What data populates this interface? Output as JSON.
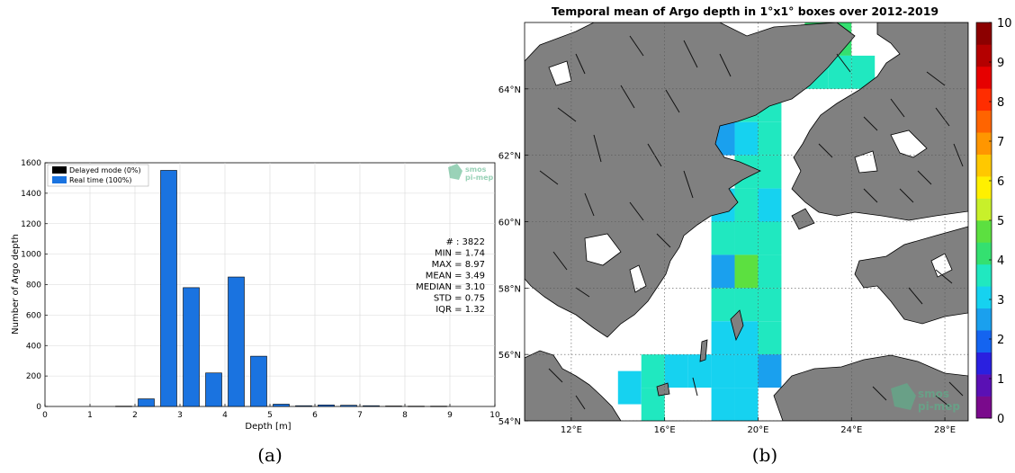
{
  "chart_data": [
    {
      "type": "bar",
      "panel_label": "(a)",
      "xlabel": "Depth [m]",
      "ylabel": "Number of Argo depth",
      "xlim": [
        0,
        10
      ],
      "ylim": [
        0,
        1600
      ],
      "xticks": [
        "0",
        "1",
        "2",
        "3",
        "4",
        "5",
        "6",
        "7",
        "8",
        "9",
        "10"
      ],
      "yticks": [
        "0",
        "200",
        "400",
        "600",
        "800",
        "1000",
        "1200",
        "1400",
        "1600"
      ],
      "grid": true,
      "legend_position": "top-left",
      "series": [
        {
          "name": "Delayed mode (0%)",
          "color": "#000000",
          "values": []
        },
        {
          "name": "Real time (100%)",
          "color": "#1a73e0",
          "x": [
            1.75,
            2.25,
            2.75,
            3.25,
            3.75,
            4.25,
            4.75,
            5.25,
            5.75,
            6.25,
            6.75,
            7.25,
            7.75,
            8.25,
            8.75
          ],
          "values": [
            2,
            50,
            1550,
            780,
            220,
            850,
            330,
            15,
            5,
            10,
            8,
            5,
            3,
            2,
            2
          ]
        }
      ],
      "stats": [
        "# : 3822",
        "MIN = 1.74",
        "MAX = 8.97",
        "MEAN = 3.49",
        "MEDIAN = 3.10",
        "STD = 0.75",
        "IQR = 1.32"
      ],
      "watermark": [
        "smos",
        "pi-mep"
      ]
    },
    {
      "type": "heatmap",
      "panel_label": "(b)",
      "title": "Temporal mean of Argo depth in 1°x1° boxes over 2012-2019",
      "xlim": [
        10,
        29
      ],
      "ylim": [
        54,
        66
      ],
      "xticks": [
        "12°E",
        "16°E",
        "20°E",
        "24°E",
        "28°E"
      ],
      "yticks": [
        "54°N",
        "56°N",
        "58°N",
        "60°N",
        "62°N",
        "64°N"
      ],
      "colorbar": {
        "min": 0,
        "max": 10,
        "ticks": [
          "0",
          "1",
          "2",
          "3",
          "4",
          "5",
          "6",
          "7",
          "8",
          "9",
          "10"
        ],
        "colors": [
          "#7a0a8c",
          "#5a10b4",
          "#2a20e0",
          "#1464f0",
          "#1aa0ee",
          "#16d2f0",
          "#20e8c0",
          "#34e070",
          "#5ce040",
          "#c8f02a",
          "#fff000",
          "#ffc800",
          "#ff9600",
          "#ff6400",
          "#ff2d00",
          "#e60000",
          "#b40000",
          "#8c0000"
        ]
      },
      "cells": [
        {
          "lon": 22.5,
          "lat": 65.5,
          "value": 4.3
        },
        {
          "lon": 23.5,
          "lat": 65.5,
          "value": 4.3
        },
        {
          "lon": 22.5,
          "lat": 64.5,
          "value": 3.7
        },
        {
          "lon": 23.5,
          "lat": 64.5,
          "value": 3.7
        },
        {
          "lon": 24.5,
          "lat": 64.5,
          "value": 3.7
        },
        {
          "lon": 20.5,
          "lat": 63.5,
          "value": 3.7
        },
        {
          "lon": 19.5,
          "lat": 63.5,
          "value": 3.7
        },
        {
          "lon": 18.5,
          "lat": 62.5,
          "value": 2.5
        },
        {
          "lon": 19.5,
          "lat": 62.5,
          "value": 3.3
        },
        {
          "lon": 20.5,
          "lat": 62.5,
          "value": 3.7
        },
        {
          "lon": 19.5,
          "lat": 61.5,
          "value": 3.7
        },
        {
          "lon": 20.5,
          "lat": 61.5,
          "value": 3.7
        },
        {
          "lon": 18.5,
          "lat": 60.5,
          "value": 3.2
        },
        {
          "lon": 19.5,
          "lat": 60.5,
          "value": 3.7
        },
        {
          "lon": 20.5,
          "lat": 60.5,
          "value": 3.2
        },
        {
          "lon": 18.5,
          "lat": 59.5,
          "value": 3.7
        },
        {
          "lon": 19.5,
          "lat": 59.5,
          "value": 3.7
        },
        {
          "lon": 20.5,
          "lat": 59.5,
          "value": 3.7
        },
        {
          "lon": 18.5,
          "lat": 58.5,
          "value": 2.5
        },
        {
          "lon": 19.5,
          "lat": 58.5,
          "value": 4.5
        },
        {
          "lon": 20.5,
          "lat": 58.5,
          "value": 3.7
        },
        {
          "lon": 18.5,
          "lat": 57.5,
          "value": 3.7
        },
        {
          "lon": 19.5,
          "lat": 57.5,
          "value": 3.7
        },
        {
          "lon": 20.5,
          "lat": 57.5,
          "value": 3.7
        },
        {
          "lon": 18.5,
          "lat": 56.5,
          "value": 3.2
        },
        {
          "lon": 19.5,
          "lat": 56.5,
          "value": 3.2
        },
        {
          "lon": 20.5,
          "lat": 56.5,
          "value": 3.7
        },
        {
          "lon": 15.5,
          "lat": 55.5,
          "value": 3.7
        },
        {
          "lon": 16.5,
          "lat": 55.5,
          "value": 3.2
        },
        {
          "lon": 17.5,
          "lat": 55.5,
          "value": 3.2
        },
        {
          "lon": 18.5,
          "lat": 55.5,
          "value": 3.2
        },
        {
          "lon": 19.5,
          "lat": 55.5,
          "value": 3.2
        },
        {
          "lon": 20.5,
          "lat": 55.5,
          "value": 2.5
        },
        {
          "lon": 14.5,
          "lat": 55.0,
          "value": 3.2
        },
        {
          "lon": 15.5,
          "lat": 54.5,
          "value": 3.7
        },
        {
          "lon": 18.5,
          "lat": 54.5,
          "value": 3.2
        },
        {
          "lon": 19.5,
          "lat": 54.5,
          "value": 3.2
        }
      ],
      "watermark": [
        "smos",
        "pi-mep"
      ]
    }
  ]
}
